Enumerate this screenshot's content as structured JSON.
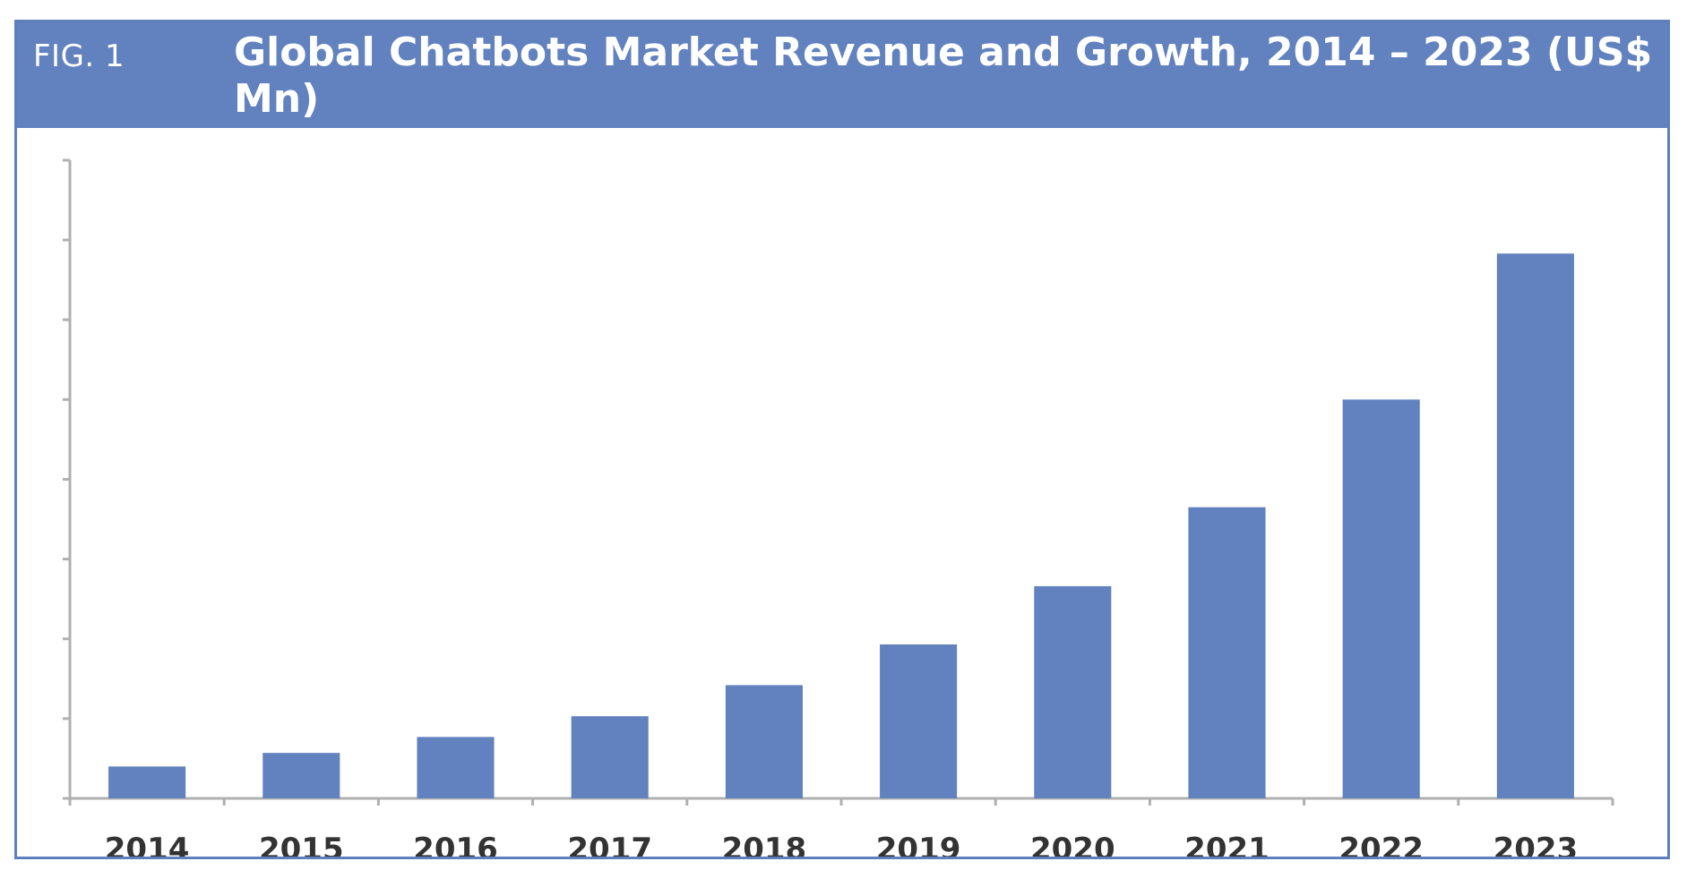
{
  "figure": {
    "label": "FIG. 1"
  },
  "chart_data": {
    "type": "bar",
    "title": "Global Chatbots Market Revenue and Growth, 2014 – 2023 (US$ Mn)",
    "xlabel": "",
    "ylabel": "",
    "categories": [
      "2014",
      "2015",
      "2016",
      "2017",
      "2018",
      "2019",
      "2020",
      "2021",
      "2022",
      "2023"
    ],
    "series": [
      {
        "values": [
          0.4,
          0.57,
          0.77,
          1.03,
          1.42,
          1.93,
          2.66,
          3.65,
          5.0,
          6.83
        ]
      }
    ],
    "ylim": [
      0,
      8
    ],
    "y_ticks": 8,
    "y_tick_labels_shown": false,
    "grid": false,
    "legend": "none",
    "bar_color": "#6282bf",
    "header_color": "#6282bf",
    "axis_color": "#b0b0b0"
  }
}
